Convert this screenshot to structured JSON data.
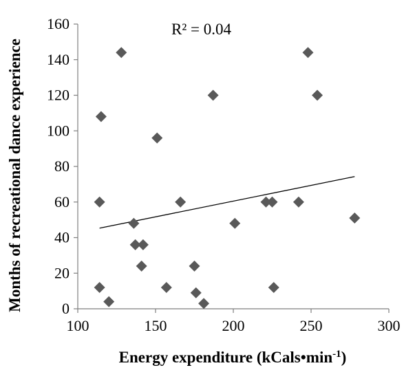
{
  "chart_data": {
    "type": "scatter",
    "xlabel": "Energy expenditure (kCals•min",
    "xlabel_sup": "-1",
    "xlabel_end": ")",
    "ylabel": "Months of recreational dance experience",
    "annotation": "R² = 0.04",
    "xlim": [
      100,
      300
    ],
    "ylim": [
      0,
      160
    ],
    "xticks": [
      100,
      150,
      200,
      250,
      300
    ],
    "yticks": [
      0,
      20,
      40,
      60,
      80,
      100,
      120,
      140,
      160
    ],
    "grid": false,
    "marker": "diamond",
    "marker_color": "#595959",
    "trendline": {
      "x": [
        114,
        278
      ],
      "y": [
        45.3,
        74.3
      ],
      "color": "#000000"
    },
    "points": [
      {
        "x": 128,
        "y": 144
      },
      {
        "x": 248,
        "y": 144
      },
      {
        "x": 187,
        "y": 120
      },
      {
        "x": 254,
        "y": 120
      },
      {
        "x": 115,
        "y": 108
      },
      {
        "x": 151,
        "y": 96
      },
      {
        "x": 114,
        "y": 60
      },
      {
        "x": 166,
        "y": 60
      },
      {
        "x": 221,
        "y": 60
      },
      {
        "x": 225,
        "y": 60
      },
      {
        "x": 242,
        "y": 60
      },
      {
        "x": 278,
        "y": 51
      },
      {
        "x": 136,
        "y": 48
      },
      {
        "x": 201,
        "y": 48
      },
      {
        "x": 137,
        "y": 36
      },
      {
        "x": 142,
        "y": 36
      },
      {
        "x": 141,
        "y": 24
      },
      {
        "x": 175,
        "y": 24
      },
      {
        "x": 114,
        "y": 12
      },
      {
        "x": 157,
        "y": 12
      },
      {
        "x": 226,
        "y": 12
      },
      {
        "x": 176,
        "y": 9
      },
      {
        "x": 120,
        "y": 4
      },
      {
        "x": 181,
        "y": 3
      }
    ]
  }
}
